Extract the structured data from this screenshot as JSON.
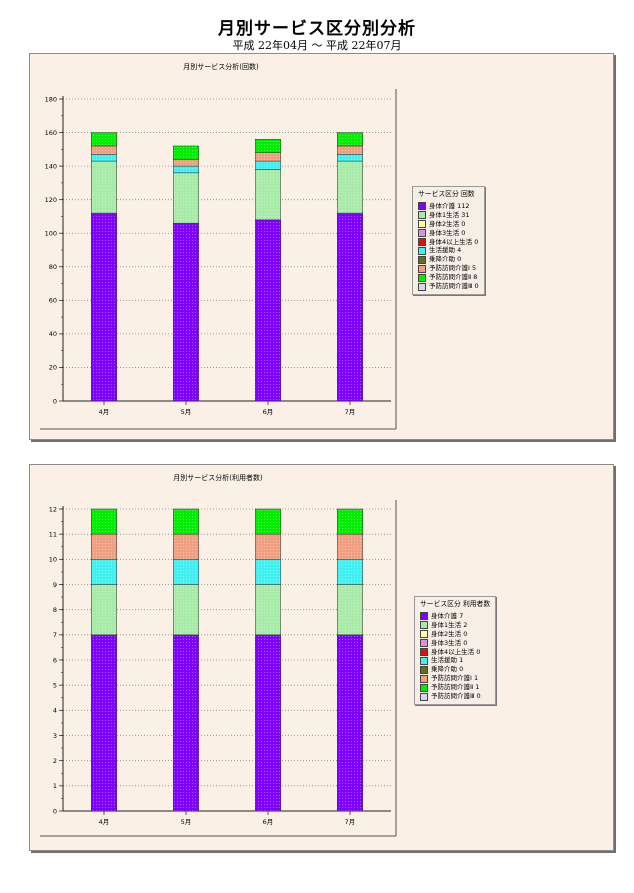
{
  "header": {
    "title": "月別サービス区分別分析",
    "subtitle": "平成 22年04月 ～ 平成 22年07月"
  },
  "colors": {
    "series": [
      "#7f00ff",
      "#a8eba8",
      "#ffffa0",
      "#e090e0",
      "#dd1111",
      "#40f0f0",
      "#6b6b1f",
      "#f0a080",
      "#00ee00",
      "#d6d6ee"
    ]
  },
  "chart_data": [
    {
      "type": "bar",
      "stacked": true,
      "title": "月別サービス分析(回数)",
      "categories": [
        "4月",
        "5月",
        "6月",
        "7月"
      ],
      "xlabel": "",
      "ylabel": "",
      "ylim": [
        0,
        180
      ],
      "yticks": [
        0,
        20,
        40,
        60,
        80,
        100,
        120,
        140,
        160,
        180
      ],
      "grid": true,
      "legend_position": "right",
      "legend_title": "サービス区分  回数",
      "legend_labels": [
        "身体介護  112",
        "身体1生活  31",
        "身体2生活  0",
        "身体3生活  0",
        "身体4以上生活  0",
        "生活援助  4",
        "乗降介助  0",
        "予防訪問介護Ⅰ  5",
        "予防訪問介護Ⅱ  8",
        "予防訪問介護Ⅲ  0"
      ],
      "series": [
        {
          "name": "身体介護",
          "values": [
            112,
            106,
            108,
            112
          ]
        },
        {
          "name": "身体1生活",
          "values": [
            31,
            30,
            30,
            31
          ]
        },
        {
          "name": "身体2生活",
          "values": [
            0,
            0,
            0,
            0
          ]
        },
        {
          "name": "身体3生活",
          "values": [
            0,
            0,
            0,
            0
          ]
        },
        {
          "name": "身体4以上生活",
          "values": [
            0,
            0,
            0,
            0
          ]
        },
        {
          "name": "生活援助",
          "values": [
            4,
            4,
            5,
            4
          ]
        },
        {
          "name": "乗降介助",
          "values": [
            0,
            0,
            0,
            0
          ]
        },
        {
          "name": "予防訪問介護Ⅰ",
          "values": [
            5,
            4,
            5,
            5
          ]
        },
        {
          "name": "予防訪問介護Ⅱ",
          "values": [
            8,
            8,
            8,
            8
          ]
        },
        {
          "name": "予防訪問介護Ⅲ",
          "values": [
            0,
            0,
            0,
            0
          ]
        }
      ]
    },
    {
      "type": "bar",
      "stacked": true,
      "title": "月別サービス分析(利用者数)",
      "categories": [
        "4月",
        "5月",
        "6月",
        "7月"
      ],
      "xlabel": "",
      "ylabel": "",
      "ylim": [
        0,
        12
      ],
      "yticks": [
        0,
        1,
        2,
        3,
        4,
        5,
        6,
        7,
        8,
        9,
        10,
        11,
        12
      ],
      "grid": true,
      "legend_position": "right",
      "legend_title": "サービス区分  利用者数",
      "legend_labels": [
        "身体介護  7",
        "身体1生活  2",
        "身体2生活  0",
        "身体3生活  0",
        "身体4以上生活  0",
        "生活援助  1",
        "乗降介助  0",
        "予防訪問介護Ⅰ  1",
        "予防訪問介護Ⅱ  1",
        "予防訪問介護Ⅲ  0"
      ],
      "series": [
        {
          "name": "身体介護",
          "values": [
            7,
            7,
            7,
            7
          ]
        },
        {
          "name": "身体1生活",
          "values": [
            2,
            2,
            2,
            2
          ]
        },
        {
          "name": "身体2生活",
          "values": [
            0,
            0,
            0,
            0
          ]
        },
        {
          "name": "身体3生活",
          "values": [
            0,
            0,
            0,
            0
          ]
        },
        {
          "name": "身体4以上生活",
          "values": [
            0,
            0,
            0,
            0
          ]
        },
        {
          "name": "生活援助",
          "values": [
            1,
            1,
            1,
            1
          ]
        },
        {
          "name": "乗降介助",
          "values": [
            0,
            0,
            0,
            0
          ]
        },
        {
          "name": "予防訪問介護Ⅰ",
          "values": [
            1,
            1,
            1,
            1
          ]
        },
        {
          "name": "予防訪問介護Ⅱ",
          "values": [
            1,
            1,
            1,
            1
          ]
        },
        {
          "name": "予防訪問介護Ⅲ",
          "values": [
            0,
            0,
            0,
            0
          ]
        }
      ]
    }
  ]
}
